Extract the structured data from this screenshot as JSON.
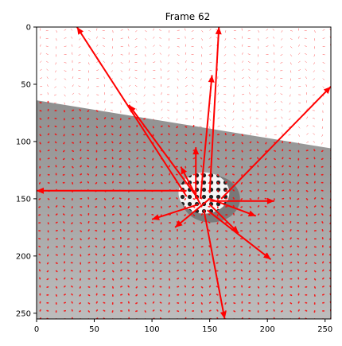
{
  "chart_data": {
    "type": "image-with-quiver",
    "title": "Frame 62",
    "xlabel": "",
    "ylabel": "",
    "xlim": [
      0,
      255
    ],
    "ylim": [
      255,
      0
    ],
    "x_ticks": [
      0,
      50,
      100,
      150,
      200,
      250
    ],
    "y_ticks": [
      0,
      50,
      100,
      150,
      200,
      250
    ],
    "x_tick_labels": [
      "0",
      "50",
      "100",
      "150",
      "200",
      "250"
    ],
    "y_tick_labels": [
      "0",
      "50",
      "100",
      "150",
      "200",
      "250"
    ],
    "grid": false,
    "legend": "none",
    "image": {
      "description_free": true,
      "bright_region_boundary": [
        [
          0,
          64
        ],
        [
          255,
          106
        ]
      ],
      "object_center": [
        145,
        145
      ],
      "object_radius": [
        22,
        18
      ]
    },
    "vector_field": {
      "grid_step": 7,
      "color": "#ff0000"
    },
    "large_vectors": [
      {
        "x0": 130,
        "y0": 148,
        "x1": 35,
        "y1": 0
      },
      {
        "x0": 150,
        "y0": 145,
        "x1": 158,
        "y1": 0
      },
      {
        "x0": 160,
        "y0": 150,
        "x1": 255,
        "y1": 52
      },
      {
        "x0": 130,
        "y0": 143,
        "x1": 0,
        "y1": 143
      },
      {
        "x0": 145,
        "y0": 160,
        "x1": 163,
        "y1": 255
      },
      {
        "x0": 140,
        "y0": 150,
        "x1": 80,
        "y1": 68
      },
      {
        "x0": 142,
        "y0": 150,
        "x1": 152,
        "y1": 42
      },
      {
        "x0": 150,
        "y0": 152,
        "x1": 206,
        "y1": 152
      },
      {
        "x0": 148,
        "y0": 160,
        "x1": 203,
        "y1": 203
      },
      {
        "x0": 140,
        "y0": 155,
        "x1": 100,
        "y1": 168
      },
      {
        "x0": 138,
        "y0": 150,
        "x1": 138,
        "y1": 105
      },
      {
        "x0": 150,
        "y0": 150,
        "x1": 120,
        "y1": 175
      },
      {
        "x0": 150,
        "y0": 150,
        "x1": 190,
        "y1": 165
      },
      {
        "x0": 142,
        "y0": 155,
        "x1": 125,
        "y1": 122
      },
      {
        "x0": 150,
        "y0": 155,
        "x1": 175,
        "y1": 180
      }
    ]
  }
}
